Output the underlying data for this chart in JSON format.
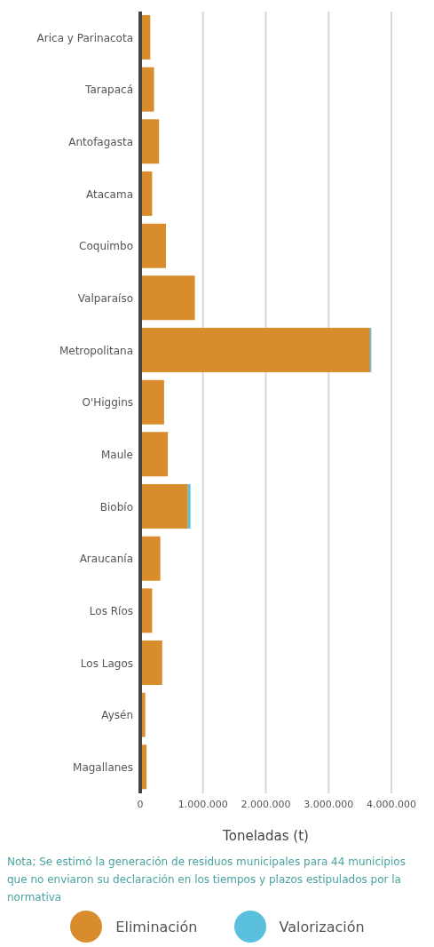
{
  "chart_data": {
    "type": "bar",
    "orientation": "horizontal",
    "stacked": true,
    "xlabel": "Toneladas (t)",
    "categories": [
      "Arica y Parinacota",
      "Tarapacá",
      "Antofagasta",
      "Atacama",
      "Coquimbo",
      "Valparaíso",
      "Metropolitana",
      "O'Higgins",
      "Maule",
      "Biobío",
      "Araucanía",
      "Los Ríos",
      "Los Lagos",
      "Aysén",
      "Magallanes"
    ],
    "series": [
      {
        "name": "Eliminación",
        "color": "#d98c2b",
        "values": [
          160000,
          220000,
          300000,
          190000,
          410000,
          870000,
          3660000,
          380000,
          440000,
          760000,
          320000,
          190000,
          350000,
          80000,
          100000
        ]
      },
      {
        "name": "Valorización",
        "color": "#5bc0de",
        "values": [
          0,
          0,
          0,
          0,
          0,
          0,
          20000,
          0,
          0,
          40000,
          0,
          0,
          0,
          0,
          0
        ]
      }
    ],
    "xlim": [
      0,
      4000000
    ],
    "xticks": [
      {
        "value": 0,
        "label": "0"
      },
      {
        "value": 1000000,
        "label": "1.000.000"
      },
      {
        "value": 2000000,
        "label": "2.000.000"
      },
      {
        "value": 3000000,
        "label": "3.000.000"
      },
      {
        "value": 4000000,
        "label": "4.000.000"
      }
    ],
    "grid": "x",
    "legend": "bottom",
    "annotations": [
      "Nota; Se estimó la generación de residuos municipales para 44 municipios que no enviaron su declaración en los tiempos y plazos estipulados por la normativa"
    ]
  }
}
